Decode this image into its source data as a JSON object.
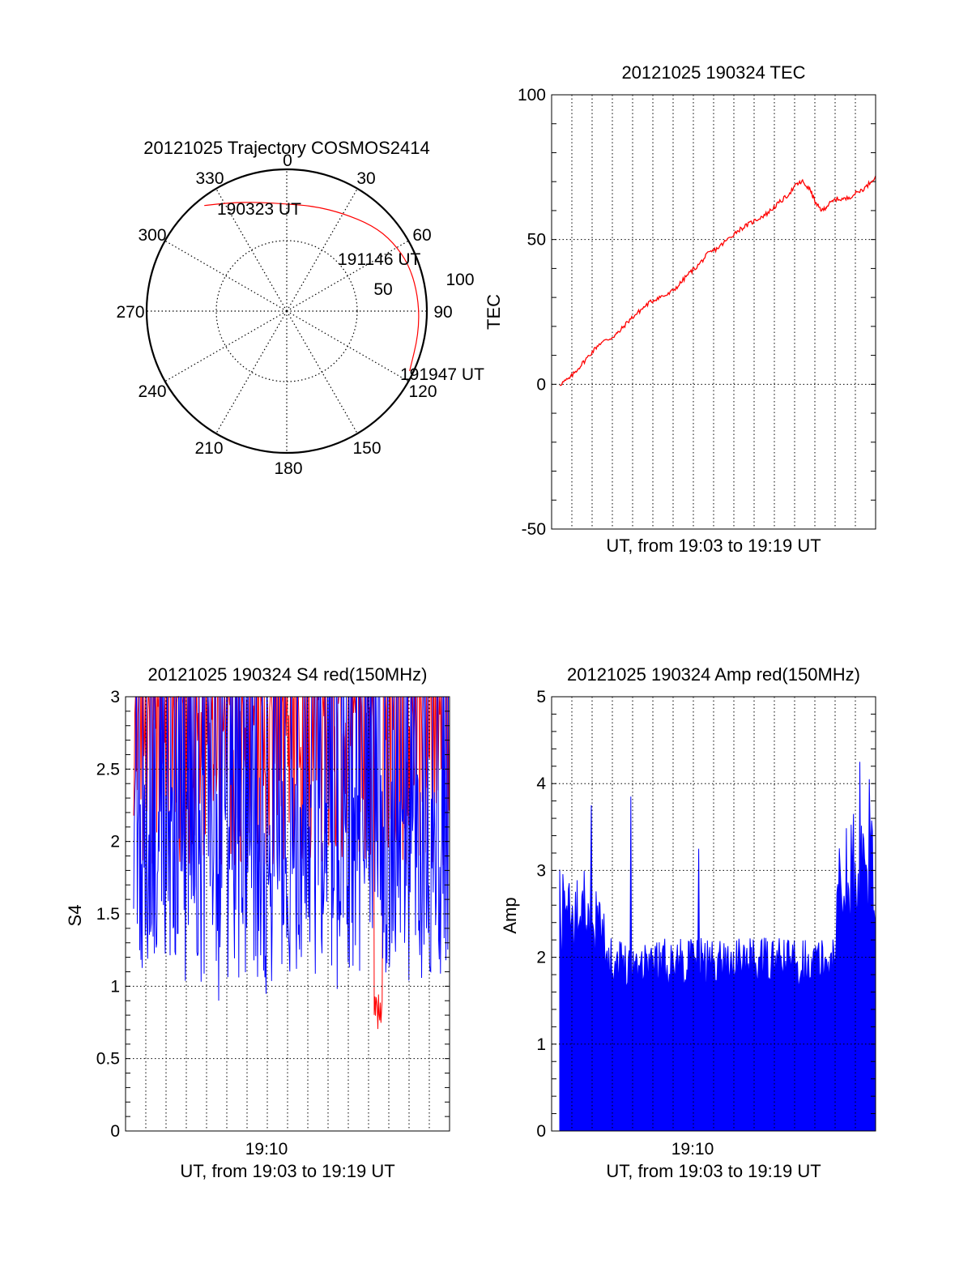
{
  "colors": {
    "red": "#ff0000",
    "blue": "#0000ff",
    "axis": "#000000"
  },
  "chart_data": [
    {
      "type": "scatter",
      "title": "20121025 Trajectory COSMOS2414",
      "polar": true,
      "azimuth_labels": [
        "0",
        "30",
        "60",
        "90",
        "120",
        "150",
        "180",
        "210",
        "240",
        "270",
        "300",
        "330"
      ],
      "radial_labels": [
        "50",
        "100"
      ],
      "trajectory": {
        "color": "#ff0000",
        "points": [
          {
            "az": 322,
            "r": 95
          },
          {
            "az": 332,
            "r": 87
          },
          {
            "az": 345,
            "r": 80
          },
          {
            "az": 0,
            "r": 76
          },
          {
            "az": 15,
            "r": 77
          },
          {
            "az": 30,
            "r": 80
          },
          {
            "az": 45,
            "r": 86
          },
          {
            "az": 57,
            "r": 90
          },
          {
            "az": 70,
            "r": 93
          },
          {
            "az": 85,
            "r": 94
          },
          {
            "az": 100,
            "r": 95
          },
          {
            "az": 116,
            "r": 97
          }
        ]
      },
      "annotations": [
        {
          "text": "190323 UT",
          "az": 336,
          "r": 76
        },
        {
          "text": "191146 UT",
          "az": 60,
          "r": 85
        },
        {
          "text": "191947 UT",
          "az": 118,
          "r": 100
        }
      ]
    },
    {
      "type": "line",
      "title": "20121025 190324 TEC",
      "xlabel": "UT, from 19:03 to 19:19 UT",
      "ylabel": "TEC",
      "ylim": [
        -50,
        100
      ],
      "xlim": [
        0,
        16
      ],
      "yticks": [
        "-50",
        "0",
        "50",
        "100"
      ],
      "grid": true,
      "series": [
        {
          "color": "#ff0000",
          "x": [
            0,
            0.5,
            1,
            1.5,
            2,
            2.6,
            3,
            3.5,
            4,
            4.5,
            5,
            5.5,
            6,
            6.5,
            7,
            7.5,
            8,
            8.5,
            9,
            9.5,
            10,
            10.5,
            11,
            11.5,
            12,
            12.3,
            12.7,
            13,
            13.3,
            13.6,
            14,
            14.5,
            15,
            15.5,
            16
          ],
          "y": [
            0,
            2,
            6,
            10,
            14,
            16,
            18,
            22,
            25,
            28,
            30,
            31,
            34,
            38,
            41,
            45,
            47,
            50,
            53,
            55,
            57,
            59,
            62,
            65,
            69,
            70,
            67,
            62,
            60,
            62,
            64,
            64,
            66,
            68,
            72
          ]
        }
      ]
    },
    {
      "type": "line",
      "title": "20121025 190324 S4 red(150MHz)",
      "xlabel": "UT, from 19:03 to 19:19 UT",
      "ylabel": "S4",
      "ylim": [
        0,
        3
      ],
      "xlim": [
        0,
        16
      ],
      "yticks": [
        "0",
        "0.5",
        "1",
        "1.5",
        "2",
        "2.5",
        "3"
      ],
      "xtick_label": "19:10",
      "grid": true,
      "series": [
        {
          "color": "#ff0000",
          "note_min": 0.7,
          "mean_level": 2.55,
          "spread": 0.45
        },
        {
          "color": "#0000ff",
          "note_min": 0.85,
          "mean_level": 1.75,
          "spread": 0.45
        }
      ]
    },
    {
      "type": "bar",
      "title": "20121025 190324 Amp red(150MHz)",
      "xlabel": "UT, from 19:03 to 19:19 UT",
      "ylabel": "Amp",
      "ylim": [
        0,
        5
      ],
      "xlim": [
        0,
        16
      ],
      "yticks": [
        "0",
        "1",
        "2",
        "3",
        "4",
        "5"
      ],
      "xtick_label": "19:10",
      "grid": true,
      "series": [
        {
          "color": "#0000ff",
          "base_level": 1.95,
          "peaks": [
            3.75,
            3.85,
            3.25,
            4.25,
            4.05
          ]
        }
      ]
    }
  ]
}
